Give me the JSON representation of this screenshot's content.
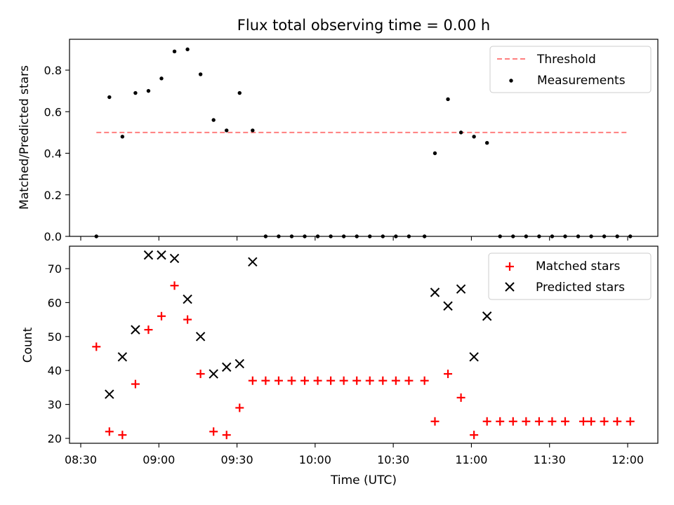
{
  "figure": {
    "title": "Flux total observing time = 0.00 h"
  },
  "chart_data": [
    {
      "type": "scatter",
      "title": "Flux total observing time = 0.00 h",
      "xlabel": "",
      "ylabel": "Matched/Predicted stars",
      "xlim": [
        "08:30",
        "12:05"
      ],
      "ylim": [
        0,
        0.94
      ],
      "yticks": [
        "0.0",
        "0.2",
        "0.4",
        "0.6",
        "0.8"
      ],
      "legend_position": "top-right",
      "threshold": {
        "name": "Threshold",
        "value": 0.5,
        "x_start": "08:36",
        "x_end": "12:00",
        "color": "#ff7f7f",
        "style": "dashed"
      },
      "series": [
        {
          "name": "Measurements",
          "color": "#000000",
          "marker": "dot",
          "points": [
            [
              "08:36",
              0.0
            ],
            [
              "08:41",
              0.67
            ],
            [
              "08:46",
              0.48
            ],
            [
              "08:51",
              0.69
            ],
            [
              "08:56",
              0.7
            ],
            [
              "09:01",
              0.76
            ],
            [
              "09:06",
              0.89
            ],
            [
              "09:11",
              0.9
            ],
            [
              "09:16",
              0.78
            ],
            [
              "09:21",
              0.56
            ],
            [
              "09:26",
              0.51
            ],
            [
              "09:31",
              0.69
            ],
            [
              "09:36",
              0.51
            ],
            [
              "09:41",
              0.0
            ],
            [
              "09:46",
              0.0
            ],
            [
              "09:51",
              0.0
            ],
            [
              "09:56",
              0.0
            ],
            [
              "10:01",
              0.0
            ],
            [
              "10:06",
              0.0
            ],
            [
              "10:11",
              0.0
            ],
            [
              "10:16",
              0.0
            ],
            [
              "10:21",
              0.0
            ],
            [
              "10:26",
              0.0
            ],
            [
              "10:31",
              0.0
            ],
            [
              "10:36",
              0.0
            ],
            [
              "10:42",
              0.0
            ],
            [
              "10:46",
              0.4
            ],
            [
              "10:51",
              0.66
            ],
            [
              "10:56",
              0.5
            ],
            [
              "11:01",
              0.48
            ],
            [
              "11:06",
              0.45
            ],
            [
              "11:11",
              0.0
            ],
            [
              "11:16",
              0.0
            ],
            [
              "11:21",
              0.0
            ],
            [
              "11:26",
              0.0
            ],
            [
              "11:31",
              0.0
            ],
            [
              "11:36",
              0.0
            ],
            [
              "11:41",
              0.0
            ],
            [
              "11:46",
              0.0
            ],
            [
              "11:51",
              0.0
            ],
            [
              "11:56",
              0.0
            ],
            [
              "12:01",
              0.0
            ]
          ]
        }
      ]
    },
    {
      "type": "scatter",
      "xlabel": "Time (UTC)",
      "ylabel": "Count",
      "xlim": [
        "08:30",
        "12:05"
      ],
      "ylim": [
        18.5,
        77
      ],
      "xticks": [
        "08:30",
        "09:00",
        "09:30",
        "10:00",
        "10:30",
        "11:00",
        "11:30",
        "12:00"
      ],
      "yticks": [
        "20",
        "30",
        "40",
        "50",
        "60",
        "70"
      ],
      "legend_position": "top-right",
      "series": [
        {
          "name": "Matched stars",
          "color": "#ff0000",
          "marker": "plus",
          "points": [
            [
              "08:36",
              47
            ],
            [
              "08:41",
              22
            ],
            [
              "08:46",
              21
            ],
            [
              "08:51",
              36
            ],
            [
              "08:56",
              52
            ],
            [
              "09:01",
              56
            ],
            [
              "09:06",
              65
            ],
            [
              "09:11",
              55
            ],
            [
              "09:16",
              39
            ],
            [
              "09:21",
              22
            ],
            [
              "09:26",
              21
            ],
            [
              "09:31",
              29
            ],
            [
              "09:36",
              37
            ],
            [
              "09:41",
              37
            ],
            [
              "09:46",
              37
            ],
            [
              "09:51",
              37
            ],
            [
              "09:56",
              37
            ],
            [
              "10:01",
              37
            ],
            [
              "10:06",
              37
            ],
            [
              "10:11",
              37
            ],
            [
              "10:16",
              37
            ],
            [
              "10:21",
              37
            ],
            [
              "10:26",
              37
            ],
            [
              "10:31",
              37
            ],
            [
              "10:36",
              37
            ],
            [
              "10:42",
              37
            ],
            [
              "10:46",
              25
            ],
            [
              "10:51",
              39
            ],
            [
              "10:56",
              32
            ],
            [
              "11:01",
              21
            ],
            [
              "11:06",
              25
            ],
            [
              "11:11",
              25
            ],
            [
              "11:16",
              25
            ],
            [
              "11:21",
              25
            ],
            [
              "11:26",
              25
            ],
            [
              "11:31",
              25
            ],
            [
              "11:36",
              25
            ],
            [
              "11:43",
              25
            ],
            [
              "11:46",
              25
            ],
            [
              "11:51",
              25
            ],
            [
              "11:56",
              25
            ],
            [
              "12:01",
              25
            ]
          ]
        },
        {
          "name": "Predicted stars",
          "color": "#000000",
          "marker": "x",
          "points": [
            [
              "08:41",
              33
            ],
            [
              "08:46",
              44
            ],
            [
              "08:51",
              52
            ],
            [
              "08:56",
              74
            ],
            [
              "09:01",
              74
            ],
            [
              "09:06",
              73
            ],
            [
              "09:11",
              61
            ],
            [
              "09:16",
              50
            ],
            [
              "09:21",
              39
            ],
            [
              "09:26",
              41
            ],
            [
              "09:31",
              42
            ],
            [
              "09:36",
              72
            ],
            [
              "10:46",
              63
            ],
            [
              "10:51",
              59
            ],
            [
              "10:56",
              64
            ],
            [
              "11:01",
              44
            ],
            [
              "11:06",
              56
            ]
          ]
        }
      ]
    }
  ]
}
